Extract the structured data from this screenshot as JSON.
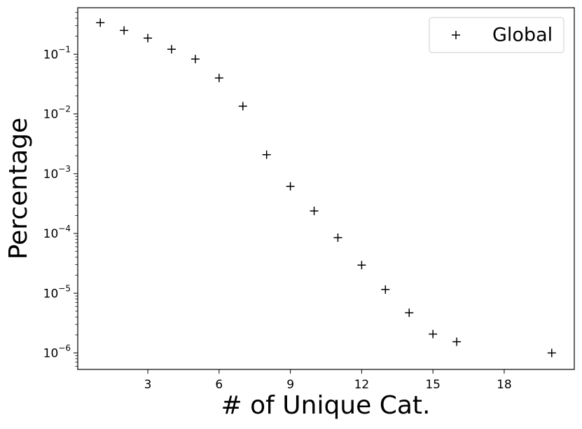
{
  "chart_data": {
    "type": "scatter",
    "x_label": "# of Unique Cat.",
    "y_label": "Percentage",
    "log_y": true,
    "legend_position": "upper right",
    "xlim": [
      0.05,
      20.95
    ],
    "xticks": [
      3,
      6,
      9,
      12,
      15,
      18
    ],
    "ylim": [
      5.3e-07,
      0.6
    ],
    "yticks": [
      {
        "value": 0.1,
        "label": "10",
        "exponent": "−1"
      },
      {
        "value": 0.01,
        "label": "10",
        "exponent": "−2"
      },
      {
        "value": 0.001,
        "label": "10",
        "exponent": "−3"
      },
      {
        "value": 0.0001,
        "label": "10",
        "exponent": "−4"
      },
      {
        "value": 1e-05,
        "label": "10",
        "exponent": "−5"
      },
      {
        "value": 1e-06,
        "label": "10",
        "exponent": "−6"
      }
    ],
    "x": [
      1,
      2,
      3,
      4,
      5,
      6,
      7,
      8,
      9,
      10,
      11,
      12,
      13,
      14,
      15,
      16,
      20
    ],
    "series": [
      {
        "name": "Global",
        "color": "#000000",
        "values": [
          0.337,
          0.25,
          0.186,
          0.121,
          0.083,
          0.04,
          0.0135,
          0.00208,
          0.000615,
          0.000238,
          8.5e-05,
          2.95e-05,
          1.15e-05,
          4.7e-06,
          2.07e-06,
          1.54e-06,
          1e-06
        ]
      }
    ]
  }
}
